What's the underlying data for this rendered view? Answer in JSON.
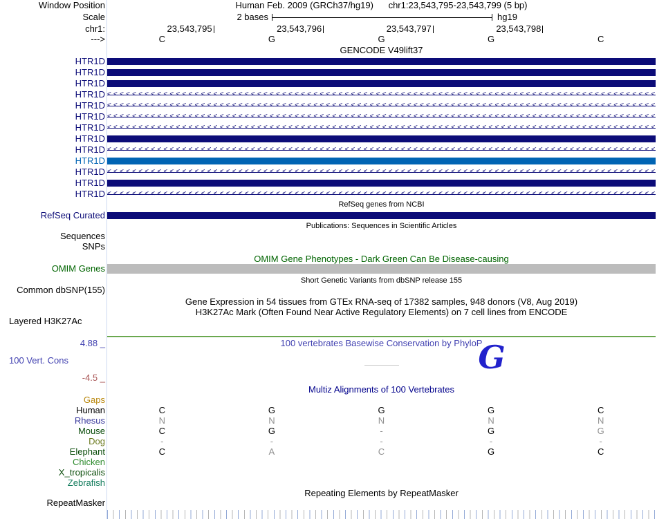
{
  "colors": {
    "navy": "#0c0c78",
    "light_blue": "#0064b4",
    "dark_green": "#006400",
    "omim_gray": "#bcbcbc",
    "phylop_blue": "#4040b0",
    "phylop_neg_red": "#a85454",
    "multiz_blue": "#00008b",
    "h3k27ac_baseline_green": "#6aa84f",
    "gaps_ochre": "#b8860b",
    "faded_letter_gray": "#909090",
    "guideline_blue": "#cdd9f0",
    "tick_blue": "#93a9d6",
    "tick_gray": "#b5b5b5",
    "big_letter_blue": "#2222cc"
  },
  "ruler": {
    "window_position_label": "Window Position",
    "assembly_title": "Human Feb. 2009 (GRCh37/hg19)",
    "position_title": "chr1:23,543,795-23,543,799 (5 bp)",
    "scale_label": "Scale",
    "scale_text": "2 bases",
    "assembly_short": "hg19",
    "chrom_label": "chr1:",
    "coordinates": [
      "23,543,795",
      "23,543,796",
      "23,543,797",
      "23,543,798"
    ],
    "strand_arrow": "--->",
    "sequence": [
      "C",
      "G",
      "G",
      "G",
      "C"
    ]
  },
  "tracks": {
    "gencode": {
      "title": "GENCODE V49lift37",
      "rows": [
        {
          "label": "HTR1D",
          "type": "exon"
        },
        {
          "label": "HTR1D",
          "type": "exon"
        },
        {
          "label": "HTR1D",
          "type": "exon"
        },
        {
          "label": "HTR1D",
          "type": "intron"
        },
        {
          "label": "HTR1D",
          "type": "intron"
        },
        {
          "label": "HTR1D",
          "type": "intron"
        },
        {
          "label": "HTR1D",
          "type": "intron"
        },
        {
          "label": "HTR1D",
          "type": "exon"
        },
        {
          "label": "HTR1D",
          "type": "intron"
        },
        {
          "label": "HTR1D",
          "type": "exon-light"
        },
        {
          "label": "HTR1D",
          "type": "intron"
        },
        {
          "label": "HTR1D",
          "type": "exon"
        },
        {
          "label": "HTR1D",
          "type": "intron"
        }
      ]
    },
    "refseq": {
      "title": "RefSeq genes from NCBI",
      "label": "RefSeq Curated"
    },
    "publications": {
      "title": "Publications: Sequences in Scientific Articles",
      "labels": [
        "Sequences",
        "SNPs"
      ]
    },
    "omim": {
      "title": "OMIM Gene Phenotypes - Dark Green Can Be Disease-causing",
      "label": "OMIM Genes"
    },
    "dbsnp": {
      "title": "Short Genetic Variants from dbSNP release 155",
      "label": "Common dbSNP(155)"
    },
    "gtex": {
      "title": "Gene Expression in 54 tissues from GTEx RNA-seq of 17382 samples, 948 donors (V8, Aug 2019)"
    },
    "h3k27ac": {
      "title": "H3K27Ac Mark (Often Found Near Active Regulatory Elements) on 7 cell lines from ENCODE",
      "label": "Layered H3K27Ac"
    },
    "phylop": {
      "title": "100 vertebrates Basewise Conservation by PhyloP",
      "label": "100 Vert. Cons",
      "max_label": "4.88 _",
      "min_label": "-4.5 _",
      "big_letter": "G"
    },
    "multiz": {
      "title": "Multiz Alignments of 100 Vertebrates",
      "rows": [
        {
          "label": "Gaps",
          "color": "#b8860b",
          "cells": [
            "",
            "",
            "",
            "",
            ""
          ],
          "shades": [
            "",
            "",
            "",
            "",
            ""
          ]
        },
        {
          "label": "Human",
          "color": "#000000",
          "cells": [
            "C",
            "G",
            "G",
            "G",
            "C"
          ],
          "shades": [
            "dark",
            "dark",
            "dark",
            "dark",
            "dark"
          ]
        },
        {
          "label": "Rhesus",
          "color": "#3c3c9e",
          "cells": [
            "N",
            "N",
            "N",
            "N",
            "N"
          ],
          "shades": [
            "dim",
            "dim",
            "dim",
            "dim",
            "dim"
          ]
        },
        {
          "label": "Mouse",
          "color": "#0b4d0b",
          "cells": [
            "C",
            "G",
            "-",
            "G",
            "G"
          ],
          "shades": [
            "dark",
            "dark",
            "dim",
            "dark",
            "dim"
          ]
        },
        {
          "label": "Dog",
          "color": "#6b7a1e",
          "cells": [
            "-",
            "-",
            "-",
            "-",
            "-"
          ],
          "shades": [
            "dim",
            "dim",
            "dim",
            "dim",
            "dim"
          ]
        },
        {
          "label": "Elephant",
          "color": "#0b4d0b",
          "cells": [
            "C",
            "A",
            "C",
            "G",
            "C"
          ],
          "shades": [
            "dark",
            "dim",
            "dim",
            "dark",
            "dark"
          ]
        },
        {
          "label": "Chicken",
          "color": "#2e8b2e",
          "cells": [
            "",
            "",
            "",
            "",
            ""
          ],
          "shades": [
            "",
            "",
            "",
            "",
            ""
          ]
        },
        {
          "label": "X_tropicalis",
          "color": "#0b4d0b",
          "cells": [
            "",
            "",
            "",
            "",
            ""
          ],
          "shades": [
            "",
            "",
            "",
            "",
            ""
          ]
        },
        {
          "label": "Zebrafish",
          "color": "#0f7a5a",
          "cells": [
            "",
            "",
            "",
            "",
            ""
          ],
          "shades": [
            "",
            "",
            "",
            "",
            ""
          ]
        }
      ]
    },
    "repeatmasker": {
      "title": "Repeating Elements by RepeatMasker",
      "label": "RepeatMasker"
    }
  }
}
